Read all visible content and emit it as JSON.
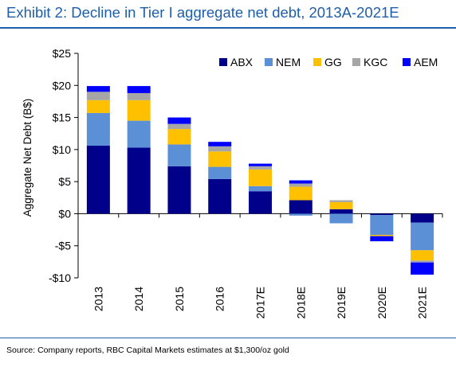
{
  "header": {
    "title": "Exhibit 2: Decline in Tier I aggregate net debt, 2013A-2021E"
  },
  "footer": {
    "source": "Source: Company reports, RBC Capital Markets estimates at $1,300/oz gold"
  },
  "chart_data": {
    "type": "bar",
    "stacked": true,
    "title": "",
    "xlabel": "",
    "ylabel": "Aggregate Net Debt (B$)",
    "ylim": [
      -10,
      25
    ],
    "yticks": [
      25,
      20,
      15,
      10,
      5,
      0,
      -5,
      -10
    ],
    "ytick_labels": [
      "$25",
      "$20",
      "$15",
      "$10",
      "$5",
      "$0",
      "-$5",
      "-$10"
    ],
    "grid": false,
    "legend_position": "top-right",
    "categories": [
      "2013",
      "2014",
      "2015",
      "2016",
      "2017E",
      "2018E",
      "2019E",
      "2020E",
      "2021E"
    ],
    "series": [
      {
        "name": "ABX",
        "color": "#00008b",
        "values": [
          10.6,
          10.3,
          7.4,
          5.4,
          3.5,
          2.1,
          0.7,
          -0.2,
          -1.4
        ]
      },
      {
        "name": "NEM",
        "color": "#5b8fd6",
        "values": [
          5.1,
          4.2,
          3.4,
          1.9,
          0.8,
          -0.3,
          -1.5,
          -3.1,
          -4.3
        ]
      },
      {
        "name": "GG",
        "color": "#ffc000",
        "values": [
          2.0,
          3.2,
          2.4,
          2.4,
          2.6,
          2.1,
          1.1,
          -0.2,
          -1.6
        ]
      },
      {
        "name": "KGC",
        "color": "#a6a6a6",
        "values": [
          1.3,
          1.1,
          0.8,
          0.8,
          0.5,
          0.5,
          0.3,
          0.0,
          -0.3
        ]
      },
      {
        "name": "AEM",
        "color": "#0000ff",
        "values": [
          0.9,
          1.1,
          1.0,
          0.7,
          0.4,
          0.5,
          0.0,
          -0.8,
          -1.9
        ]
      }
    ]
  }
}
